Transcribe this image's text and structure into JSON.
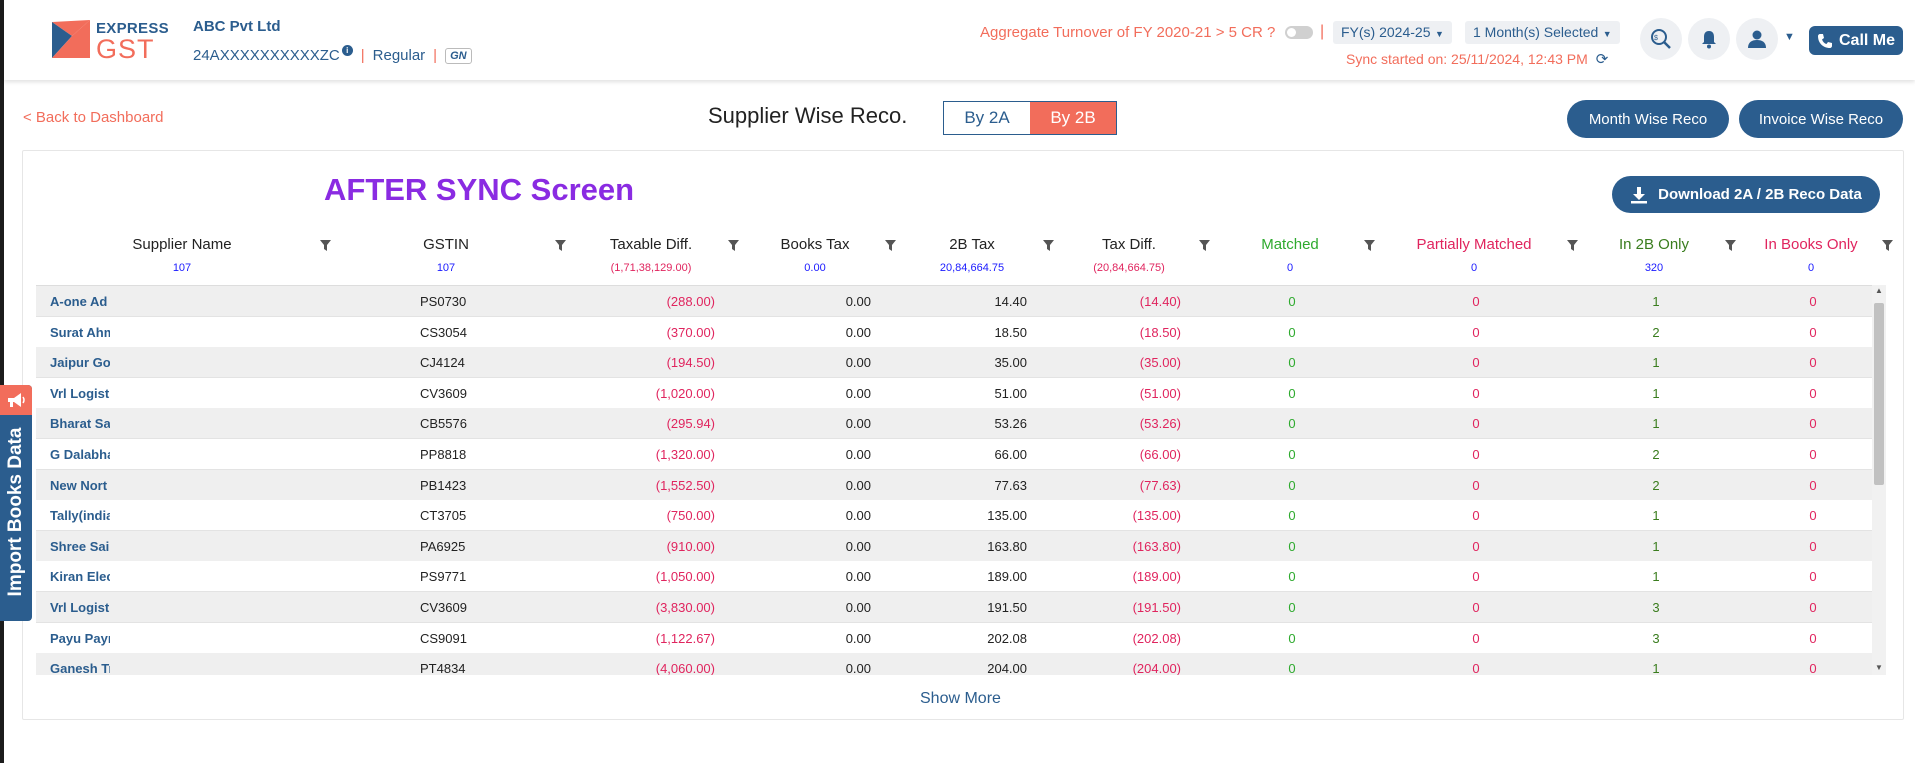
{
  "header": {
    "logo_top": "EXPRESS",
    "logo_bottom": "GST",
    "company_name": "ABC Pvt Ltd",
    "gstin": "24AXXXXXXXXXXZC",
    "info_glyph": "i",
    "reg_type": "Regular",
    "gn_badge": "GN",
    "turnover_question": "Aggregate Turnover of FY 2020-21 > 5 CR ?",
    "fy_selector": "FY(s) 2024-25",
    "month_selector": "1 Month(s) Selected",
    "sync_status": "Sync started on: 25/11/2024, 12:43 PM",
    "call_me": "Call Me"
  },
  "subbar": {
    "back_link": "< Back to Dashboard",
    "title": "Supplier Wise Reco.",
    "tabs": [
      {
        "label": "By 2A",
        "active": false
      },
      {
        "label": "By 2B",
        "active": true
      }
    ],
    "month_wise": "Month Wise Reco",
    "invoice_wise": "Invoice Wise Reco"
  },
  "annotation": "AFTER SYNC Screen",
  "download_button": "Download 2A / 2B Reco Data",
  "table": {
    "columns": [
      {
        "label": "Supplier Name",
        "summary": "107",
        "summary_color": "#1a1aff",
        "label_color": "#222222"
      },
      {
        "label": "GSTIN",
        "summary": "107",
        "summary_color": "#1a1aff",
        "label_color": "#222222"
      },
      {
        "label": "Taxable Diff.",
        "summary": "(1,71,38,129.00)",
        "summary_color": "#e0245e",
        "label_color": "#222222"
      },
      {
        "label": "Books Tax",
        "summary": "0.00",
        "summary_color": "#1a1aff",
        "label_color": "#222222"
      },
      {
        "label": "2B Tax",
        "summary": "20,84,664.75",
        "summary_color": "#1a1aff",
        "label_color": "#222222"
      },
      {
        "label": "Tax Diff.",
        "summary": "(20,84,664.75)",
        "summary_color": "#e0245e",
        "label_color": "#222222"
      },
      {
        "label": "Matched",
        "summary": "0",
        "summary_color": "#1a1aff",
        "label_color": "#2eaa2e"
      },
      {
        "label": "Partially Matched",
        "summary": "0",
        "summary_color": "#1a1aff",
        "label_color": "#e0245e"
      },
      {
        "label": "In 2B Only",
        "summary": "320",
        "summary_color": "#1a1aff",
        "label_color": "#3a7d1e"
      },
      {
        "label": "In Books Only",
        "summary": "0",
        "summary_color": "#1a1aff",
        "label_color": "#e0245e"
      }
    ],
    "rows": [
      {
        "name": "A-one Ad",
        "gstin": "PS0730",
        "taxable_diff": "(288.00)",
        "books_tax": "0.00",
        "b2_tax": "14.40",
        "tax_diff": "(14.40)",
        "matched": "0",
        "partial": "0",
        "in_2b": "1",
        "in_books": "0"
      },
      {
        "name": "Surat Ahm",
        "gstin": "CS3054",
        "taxable_diff": "(370.00)",
        "books_tax": "0.00",
        "b2_tax": "18.50",
        "tax_diff": "(18.50)",
        "matched": "0",
        "partial": "0",
        "in_2b": "2",
        "in_books": "0"
      },
      {
        "name": "Jaipur Go",
        "gstin": "CJ4124",
        "taxable_diff": "(194.50)",
        "books_tax": "0.00",
        "b2_tax": "35.00",
        "tax_diff": "(35.00)",
        "matched": "0",
        "partial": "0",
        "in_2b": "1",
        "in_books": "0"
      },
      {
        "name": "Vrl Logist",
        "gstin": "CV3609",
        "taxable_diff": "(1,020.00)",
        "books_tax": "0.00",
        "b2_tax": "51.00",
        "tax_diff": "(51.00)",
        "matched": "0",
        "partial": "0",
        "in_2b": "1",
        "in_books": "0"
      },
      {
        "name": "Bharat Sa",
        "gstin": "CB5576",
        "taxable_diff": "(295.94)",
        "books_tax": "0.00",
        "b2_tax": "53.26",
        "tax_diff": "(53.26)",
        "matched": "0",
        "partial": "0",
        "in_2b": "1",
        "in_books": "0"
      },
      {
        "name": "G Dalabha",
        "gstin": "PP8818",
        "taxable_diff": "(1,320.00)",
        "books_tax": "0.00",
        "b2_tax": "66.00",
        "tax_diff": "(66.00)",
        "matched": "0",
        "partial": "0",
        "in_2b": "2",
        "in_books": "0"
      },
      {
        "name": "New Nort",
        "gstin": "PB1423",
        "taxable_diff": "(1,552.50)",
        "books_tax": "0.00",
        "b2_tax": "77.63",
        "tax_diff": "(77.63)",
        "matched": "0",
        "partial": "0",
        "in_2b": "2",
        "in_books": "0"
      },
      {
        "name": "Tally(india",
        "gstin": "CT3705",
        "taxable_diff": "(750.00)",
        "books_tax": "0.00",
        "b2_tax": "135.00",
        "tax_diff": "(135.00)",
        "matched": "0",
        "partial": "0",
        "in_2b": "1",
        "in_books": "0"
      },
      {
        "name": "Shree Sail",
        "gstin": "PA6925",
        "taxable_diff": "(910.00)",
        "books_tax": "0.00",
        "b2_tax": "163.80",
        "tax_diff": "(163.80)",
        "matched": "0",
        "partial": "0",
        "in_2b": "1",
        "in_books": "0"
      },
      {
        "name": "Kiran Elec",
        "gstin": "PS9771",
        "taxable_diff": "(1,050.00)",
        "books_tax": "0.00",
        "b2_tax": "189.00",
        "tax_diff": "(189.00)",
        "matched": "0",
        "partial": "0",
        "in_2b": "1",
        "in_books": "0"
      },
      {
        "name": "Vrl Logist",
        "gstin": "CV3609",
        "taxable_diff": "(3,830.00)",
        "books_tax": "0.00",
        "b2_tax": "191.50",
        "tax_diff": "(191.50)",
        "matched": "0",
        "partial": "0",
        "in_2b": "3",
        "in_books": "0"
      },
      {
        "name": "Payu Payr",
        "gstin": "CS9091",
        "taxable_diff": "(1,122.67)",
        "books_tax": "0.00",
        "b2_tax": "202.08",
        "tax_diff": "(202.08)",
        "matched": "0",
        "partial": "0",
        "in_2b": "3",
        "in_books": "0"
      },
      {
        "name": "Ganesh Tr",
        "gstin": "PT4834",
        "taxable_diff": "(4,060.00)",
        "books_tax": "0.00",
        "b2_tax": "204.00",
        "tax_diff": "(204.00)",
        "matched": "0",
        "partial": "0",
        "in_2b": "1",
        "in_books": "0"
      }
    ]
  },
  "show_more": "Show More",
  "import_tab": "Import Books Data",
  "icons": {
    "search": "search-icon",
    "bell": "bell-icon",
    "user": "user-icon",
    "phone": "phone-icon",
    "filter": "filter-icon",
    "refresh": "refresh-icon",
    "download": "download-icon",
    "megaphone": "megaphone-icon"
  },
  "colors": {
    "brand_blue": "#2b5d8e",
    "brand_orange": "#f26d5b",
    "negative_red": "#e0245e",
    "matched_green": "#2eaa2e",
    "annotation_purple": "#8a2be2"
  }
}
